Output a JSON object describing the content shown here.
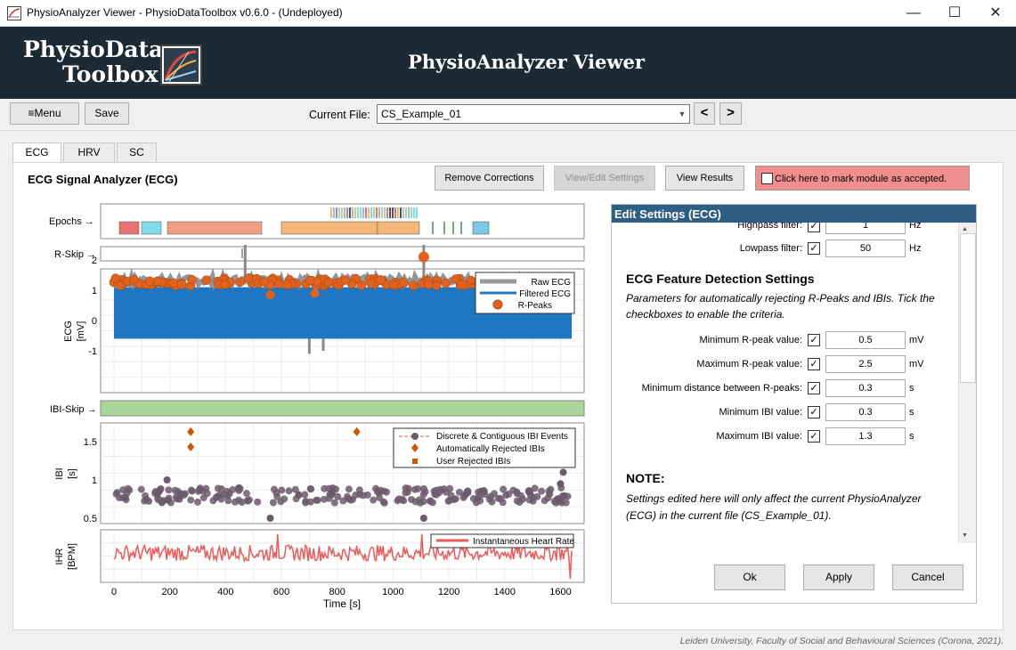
{
  "window": {
    "title": "PhysioAnalyzer Viewer  -  PhysioDataToolbox v0.6.0  -  (Undeployed)",
    "minimize": "—",
    "maximize": "☐",
    "close": "✕"
  },
  "header": {
    "logo_line1": "PhysioData",
    "logo_line2": "Toolbox",
    "title": "PhysioAnalyzer Viewer"
  },
  "toolbar": {
    "menu_label": "≡Menu",
    "save_label": "Save",
    "current_file_label": "Current File:",
    "current_file_value": "CS_Example_01",
    "prev_label": "<",
    "next_label": ">"
  },
  "tabs": [
    {
      "label": "ECG",
      "active": true
    },
    {
      "label": "HRV",
      "active": false
    },
    {
      "label": "SC",
      "active": false
    }
  ],
  "panel": {
    "title": "ECG Signal Analyzer (ECG)",
    "remove_corrections": "Remove Corrections",
    "view_edit_settings": "View/Edit Settings",
    "view_results": "View Results",
    "accept_label": "Click here to mark module as accepted."
  },
  "plots": {
    "epochs_label": "Epochs →",
    "rskip_label": "R-Skip →",
    "ibiskip_label": "IBI-Skip →",
    "ecg_ylabel": "ECG",
    "ecg_yunit": "[mV]",
    "ecg_yticks": [
      "2",
      "1",
      "0",
      "-1"
    ],
    "ecg_legend": [
      "Raw ECG",
      "Filtered ECG",
      "R-Peaks"
    ],
    "ibi_ylabel": "IBI",
    "ibi_yunit": "[s]",
    "ibi_yticks": [
      "1.5",
      "1",
      "0.5"
    ],
    "ibi_legend": [
      "Discrete & Contiguous IBI Events",
      "Automatically Rejected IBIs",
      "User Rejected IBIs"
    ],
    "ihr_ylabel": "IHR",
    "ihr_yunit": "[BPM]",
    "ihr_legend": [
      "Instantaneous Heart Rate"
    ],
    "xticks": [
      "0",
      "200",
      "400",
      "600",
      "800",
      "1000",
      "1200",
      "1400",
      "1600"
    ],
    "xlabel": "Time [s]",
    "colors": {
      "raw": "#999999",
      "filtered": "#1f77c4",
      "rpeak": "#e0621e",
      "ibi": "#6c5a6c",
      "ihr": "#ee5a5a",
      "skip": "#a8d59a"
    }
  },
  "settings": {
    "title": "Edit Settings (ECG)",
    "highpass_label": "Highpass filter:",
    "highpass_value": "1",
    "highpass_unit": "Hz",
    "lowpass_label": "Lowpass filter:",
    "lowpass_value": "50",
    "lowpass_unit": "Hz",
    "section_title": "ECG Feature Detection Settings",
    "section_desc": "Parameters for automatically rejecting R-Peaks and IBIs. Tick the checkboxes to enable the criteria.",
    "rows": [
      {
        "label": "Minimum R-peak value:",
        "value": "0.5",
        "unit": "mV"
      },
      {
        "label": "Maximum R-peak value:",
        "value": "2.5",
        "unit": "mV"
      },
      {
        "label": "Minimum distance between R-peaks:",
        "value": "0.3",
        "unit": "s"
      },
      {
        "label": "Minimum IBI value:",
        "value": "0.3",
        "unit": "s"
      },
      {
        "label": "Maximum IBI value:",
        "value": "1.3",
        "unit": "s"
      }
    ],
    "note_title": "NOTE:",
    "note_text": "Settings edited here will only affect the current PhysioAnalyzer (ECG) in the current file (CS_Example_01).",
    "ok": "Ok",
    "apply": "Apply",
    "cancel": "Cancel"
  },
  "footer": "Leiden University, Faculty of Social and Behavioural Sciences (Corona, 2021)."
}
